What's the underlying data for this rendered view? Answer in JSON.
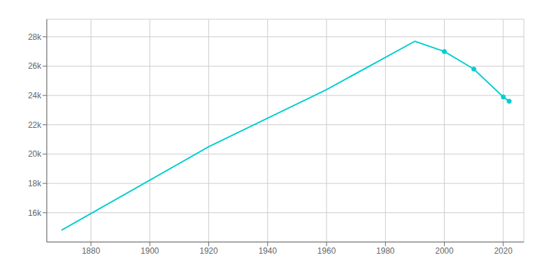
{
  "chart_data": {
    "type": "line",
    "x": [
      1870,
      1920,
      1960,
      1990,
      2000,
      2010,
      2020,
      2022
    ],
    "series": [
      {
        "type": "line",
        "color": "#00CED1",
        "values": [
          14800,
          20500,
          24400,
          27700,
          27000,
          25800,
          23900,
          23600
        ]
      },
      {
        "type": "scatter",
        "marker": "circle",
        "color": "#00CED1",
        "values": [
          null,
          null,
          null,
          null,
          27000,
          25800,
          23900,
          23600
        ]
      }
    ],
    "xlim": [
      1865,
      2027
    ],
    "ylim": [
      14000,
      29200
    ],
    "xticks": [
      1880,
      1900,
      1920,
      1940,
      1960,
      1980,
      2000,
      2020
    ],
    "yticks": [
      {
        "value": 16000,
        "label": "16k"
      },
      {
        "value": 18000,
        "label": "18k"
      },
      {
        "value": 20000,
        "label": "20k"
      },
      {
        "value": 22000,
        "label": "22k"
      },
      {
        "value": 24000,
        "label": "24k"
      },
      {
        "value": 26000,
        "label": "26k"
      },
      {
        "value": 28000,
        "label": "28k"
      }
    ],
    "grid": true
  }
}
